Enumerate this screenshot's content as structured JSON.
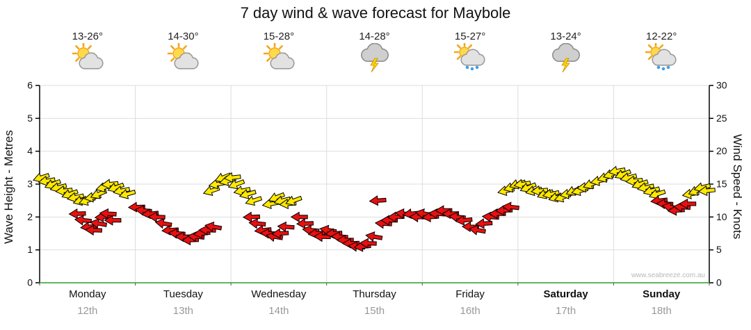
{
  "watermark": "www.seabreeze.com.au",
  "chart_data": {
    "type": "scatter",
    "subtype": "wind-arrow-forecast",
    "title": "7 day wind & wave forecast for Maybole",
    "left_axis": {
      "label": "Wave Height - Metres",
      "min": 0,
      "max": 6,
      "ticks": [
        0,
        1,
        2,
        3,
        4,
        5,
        6
      ]
    },
    "right_axis": {
      "label": "Wind Speed - Knots",
      "min": 0,
      "max": 30,
      "ticks": [
        0,
        5,
        10,
        15,
        20,
        25,
        30
      ]
    },
    "x_axis": {
      "unit": "days",
      "count": 7
    },
    "days": [
      {
        "name": "Monday",
        "date": "12th",
        "temp": "13-26°",
        "icon": "sun-cloud",
        "bold": false
      },
      {
        "name": "Tuesday",
        "date": "13th",
        "temp": "14-30°",
        "icon": "sun-cloud",
        "bold": false
      },
      {
        "name": "Wednesday",
        "date": "14th",
        "temp": "15-28°",
        "icon": "sun-cloud",
        "bold": false
      },
      {
        "name": "Thursday",
        "date": "15th",
        "temp": "14-28°",
        "icon": "storm",
        "bold": false
      },
      {
        "name": "Friday",
        "date": "16th",
        "temp": "15-27°",
        "icon": "sun-cloud-rain",
        "bold": false
      },
      {
        "name": "Saturday",
        "date": "17th",
        "temp": "13-24°",
        "icon": "storm",
        "bold": true
      },
      {
        "name": "Sunday",
        "date": "18th",
        "temp": "12-22°",
        "icon": "sun-cloud-rain",
        "bold": true
      }
    ],
    "colors": {
      "arrow_yellow": "#FFE800",
      "arrow_red": "#E81010",
      "arrow_outline": "#000000",
      "grid": "#DDDDDD",
      "axis": "#000000",
      "baseline": "#5DB75D",
      "date_text": "#999999",
      "watermark_text": "#B9B9B9"
    },
    "arrows_format": [
      "position_days_0_to_7",
      "wind_speed_knots",
      "color_y_or_r",
      "direction_deg"
    ],
    "arrows": [
      [
        0.02,
        16,
        "y",
        162
      ],
      [
        0.08,
        15.5,
        "y",
        170
      ],
      [
        0.14,
        15,
        "y",
        158
      ],
      [
        0.2,
        14.5,
        "y",
        166
      ],
      [
        0.26,
        14,
        "y",
        174
      ],
      [
        0.32,
        13.5,
        "y",
        160
      ],
      [
        0.38,
        13,
        "y",
        168
      ],
      [
        0.44,
        12.5,
        "y",
        164
      ],
      [
        0.5,
        12.5,
        "y",
        162
      ],
      [
        0.56,
        13,
        "y",
        170
      ],
      [
        0.62,
        13.5,
        "y",
        158
      ],
      [
        0.68,
        14.5,
        "y",
        166
      ],
      [
        0.74,
        15,
        "y",
        174
      ],
      [
        0.8,
        14.5,
        "y",
        160
      ],
      [
        0.86,
        14,
        "y",
        168
      ],
      [
        0.92,
        13.5,
        "y",
        164
      ],
      [
        0.4,
        10.5,
        "r",
        178
      ],
      [
        0.46,
        9.5,
        "r",
        186
      ],
      [
        0.52,
        8.5,
        "r",
        174
      ],
      [
        0.57,
        8,
        "r",
        182
      ],
      [
        0.62,
        9,
        "r",
        190
      ],
      [
        0.67,
        10,
        "r",
        176
      ],
      [
        0.72,
        10.5,
        "r",
        184
      ],
      [
        0.77,
        9.5,
        "r",
        180
      ],
      [
        1.02,
        11.5,
        "r",
        178
      ],
      [
        1.09,
        11,
        "r",
        186
      ],
      [
        1.16,
        10.5,
        "r",
        174
      ],
      [
        1.23,
        10,
        "r",
        182
      ],
      [
        1.3,
        9,
        "r",
        190
      ],
      [
        1.37,
        8,
        "r",
        176
      ],
      [
        1.44,
        7.5,
        "r",
        184
      ],
      [
        1.51,
        7,
        "r",
        180
      ],
      [
        1.58,
        6.5,
        "r",
        178
      ],
      [
        1.64,
        7,
        "r",
        186
      ],
      [
        1.7,
        7.5,
        "r",
        174
      ],
      [
        1.76,
        8,
        "r",
        182
      ],
      [
        1.82,
        8.5,
        "r",
        190
      ],
      [
        1.8,
        14,
        "y",
        162
      ],
      [
        1.86,
        15,
        "y",
        170
      ],
      [
        1.92,
        16,
        "y",
        158
      ],
      [
        1.97,
        15.5,
        "y",
        166
      ],
      [
        2.02,
        16,
        "y",
        174
      ],
      [
        2.06,
        15,
        "y",
        160
      ],
      [
        2.12,
        14,
        "y",
        168
      ],
      [
        2.18,
        13.5,
        "y",
        164
      ],
      [
        2.24,
        12.5,
        "y",
        162
      ],
      [
        2.42,
        12,
        "y",
        170
      ],
      [
        2.48,
        13,
        "y",
        158
      ],
      [
        2.54,
        12.5,
        "y",
        166
      ],
      [
        2.6,
        12,
        "y",
        174
      ],
      [
        2.66,
        12.5,
        "y",
        160
      ],
      [
        2.22,
        10,
        "r",
        178
      ],
      [
        2.28,
        9,
        "r",
        186
      ],
      [
        2.34,
        8,
        "r",
        174
      ],
      [
        2.4,
        7.5,
        "r",
        182
      ],
      [
        2.46,
        7,
        "r",
        190
      ],
      [
        2.52,
        7.5,
        "r",
        176
      ],
      [
        2.58,
        8.5,
        "r",
        184
      ],
      [
        2.72,
        10,
        "r",
        180
      ],
      [
        2.78,
        9,
        "r",
        178
      ],
      [
        2.84,
        8,
        "r",
        186
      ],
      [
        2.9,
        7.5,
        "r",
        174
      ],
      [
        2.96,
        7,
        "r",
        182
      ],
      [
        3.02,
        8,
        "r",
        190
      ],
      [
        3.08,
        7.5,
        "r",
        176
      ],
      [
        3.14,
        7,
        "r",
        184
      ],
      [
        3.2,
        6.5,
        "r",
        180
      ],
      [
        3.26,
        6,
        "r",
        178
      ],
      [
        3.32,
        5.5,
        "r",
        186
      ],
      [
        3.38,
        5.5,
        "r",
        174
      ],
      [
        3.44,
        6,
        "r",
        182
      ],
      [
        3.5,
        7,
        "r",
        190
      ],
      [
        3.54,
        12.5,
        "r",
        176
      ],
      [
        3.6,
        9,
        "r",
        184
      ],
      [
        3.66,
        9.5,
        "r",
        180
      ],
      [
        3.73,
        10,
        "r",
        178
      ],
      [
        3.81,
        10.5,
        "r",
        186
      ],
      [
        3.89,
        10.5,
        "r",
        174
      ],
      [
        3.96,
        10,
        "r",
        182
      ],
      [
        4.02,
        10.5,
        "r",
        190
      ],
      [
        4.09,
        10,
        "r",
        176
      ],
      [
        4.16,
        10.5,
        "r",
        184
      ],
      [
        4.23,
        11,
        "r",
        180
      ],
      [
        4.3,
        10.5,
        "r",
        178
      ],
      [
        4.37,
        10,
        "r",
        186
      ],
      [
        4.44,
        9.5,
        "r",
        174
      ],
      [
        4.51,
        8.5,
        "r",
        182
      ],
      [
        4.58,
        8,
        "r",
        190
      ],
      [
        4.65,
        9,
        "r",
        176
      ],
      [
        4.72,
        10,
        "r",
        184
      ],
      [
        4.79,
        10.5,
        "r",
        180
      ],
      [
        4.86,
        11,
        "r",
        178
      ],
      [
        4.93,
        11.5,
        "r",
        186
      ],
      [
        4.88,
        14,
        "y",
        168
      ],
      [
        4.94,
        14.5,
        "y",
        164
      ],
      [
        5.0,
        15,
        "y",
        162
      ],
      [
        5.05,
        15,
        "y",
        170
      ],
      [
        5.11,
        14.5,
        "y",
        158
      ],
      [
        5.17,
        14,
        "y",
        166
      ],
      [
        5.23,
        14,
        "y",
        174
      ],
      [
        5.29,
        13.5,
        "y",
        160
      ],
      [
        5.35,
        13.5,
        "y",
        168
      ],
      [
        5.41,
        13,
        "y",
        164
      ],
      [
        5.47,
        13,
        "y",
        162
      ],
      [
        5.53,
        13.5,
        "y",
        170
      ],
      [
        5.59,
        14,
        "y",
        158
      ],
      [
        5.65,
        14,
        "y",
        166
      ],
      [
        5.71,
        14.5,
        "y",
        174
      ],
      [
        5.77,
        15,
        "y",
        160
      ],
      [
        5.85,
        15.5,
        "y",
        168
      ],
      [
        5.92,
        16,
        "y",
        164
      ],
      [
        5.98,
        16.5,
        "y",
        162
      ],
      [
        6.04,
        17,
        "y",
        170
      ],
      [
        6.1,
        16.5,
        "y",
        158
      ],
      [
        6.16,
        16,
        "y",
        166
      ],
      [
        6.22,
        15.5,
        "y",
        174
      ],
      [
        6.28,
        15,
        "y",
        160
      ],
      [
        6.34,
        14.5,
        "y",
        168
      ],
      [
        6.4,
        14,
        "y",
        164
      ],
      [
        6.46,
        13.5,
        "y",
        162
      ],
      [
        6.48,
        12.5,
        "r",
        174
      ],
      [
        6.54,
        12,
        "r",
        182
      ],
      [
        6.6,
        11.5,
        "r",
        190
      ],
      [
        6.66,
        11,
        "r",
        176
      ],
      [
        6.72,
        11.5,
        "r",
        184
      ],
      [
        6.78,
        12,
        "r",
        180
      ],
      [
        6.81,
        13.5,
        "y",
        170
      ],
      [
        6.87,
        14,
        "y",
        158
      ],
      [
        6.93,
        14.5,
        "y",
        166
      ],
      [
        6.98,
        14,
        "y",
        174
      ]
    ]
  }
}
